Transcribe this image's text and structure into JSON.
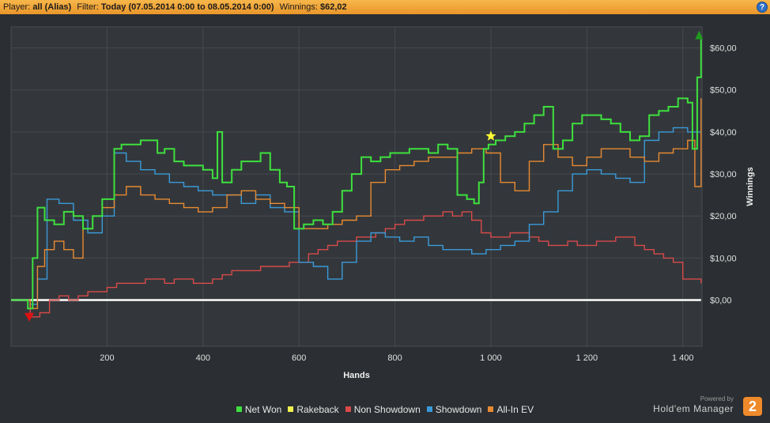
{
  "header": {
    "player_label": "Player:",
    "player_value": "all (Alias)",
    "filter_label": "Filter:",
    "filter_value": "Today (07.05.2014 0:00 to 08.05.2014 0:00)",
    "winnings_label": "Winnings:",
    "winnings_value": "$62,02",
    "help_glyph": "?"
  },
  "brand": {
    "powered": "Powered by",
    "name": "Hold'em Manager",
    "logo": "2"
  },
  "colors": {
    "net_won": "#3ee03e",
    "rakeback": "#f0f050",
    "non_showdown": "#d84a4a",
    "showdown": "#3a9ad9",
    "all_in_ev": "#e88a32"
  },
  "chart_data": {
    "type": "line",
    "title": "",
    "xlabel": "Hands",
    "ylabel": "Winnings",
    "xlim": [
      0,
      1440
    ],
    "ylim": [
      -11,
      65
    ],
    "x_ticks": [
      200,
      400,
      600,
      800,
      1000,
      1200,
      1400
    ],
    "x_tick_labels": [
      "200",
      "400",
      "600",
      "800",
      "1 000",
      "1 200",
      "1 400"
    ],
    "y_ticks": [
      0,
      10,
      20,
      30,
      40,
      50,
      60
    ],
    "y_tick_labels": [
      "$0,00",
      "$10,00",
      "$20,00",
      "$30,00",
      "$40,00",
      "$50,00",
      "$60,00"
    ],
    "grid": true,
    "legend_position": "bottom",
    "series": [
      {
        "name": "Net Won",
        "x": [
          0,
          25,
          35,
          45,
          55,
          70,
          90,
          110,
          130,
          150,
          170,
          190,
          215,
          230,
          250,
          270,
          290,
          305,
          320,
          340,
          360,
          380,
          400,
          420,
          430,
          440,
          460,
          480,
          500,
          520,
          540,
          560,
          575,
          590,
          610,
          630,
          650,
          670,
          690,
          710,
          730,
          750,
          770,
          790,
          810,
          830,
          850,
          870,
          890,
          910,
          930,
          950,
          965,
          975,
          985,
          995,
          1010,
          1030,
          1050,
          1070,
          1090,
          1110,
          1130,
          1150,
          1170,
          1190,
          1210,
          1230,
          1250,
          1270,
          1290,
          1310,
          1330,
          1350,
          1370,
          1390,
          1410,
          1420,
          1430,
          1438
        ],
        "values": [
          0,
          0,
          -2,
          10,
          22,
          19,
          18,
          21,
          20,
          17,
          20,
          24,
          36,
          37,
          37,
          38,
          38,
          35,
          36,
          33,
          32,
          32,
          31,
          29,
          40,
          28,
          31,
          33,
          33,
          35,
          31,
          28,
          27,
          17,
          18,
          19,
          18,
          21,
          26,
          30,
          34,
          33,
          34,
          35,
          35,
          36,
          36,
          35,
          37,
          36,
          25,
          24,
          23,
          28,
          36,
          37,
          38,
          39,
          40,
          42,
          44,
          46,
          36,
          38,
          42,
          44,
          44,
          43,
          42,
          40,
          38,
          39,
          44,
          45,
          46,
          48,
          47,
          36,
          53,
          62
        ]
      },
      {
        "name": "Non Showdown",
        "x": [
          0,
          25,
          40,
          60,
          80,
          100,
          120,
          140,
          160,
          180,
          200,
          220,
          240,
          260,
          280,
          300,
          320,
          340,
          360,
          380,
          400,
          420,
          440,
          460,
          480,
          500,
          520,
          540,
          560,
          580,
          600,
          620,
          640,
          660,
          680,
          700,
          720,
          740,
          760,
          780,
          800,
          820,
          840,
          860,
          880,
          900,
          920,
          940,
          960,
          980,
          1000,
          1020,
          1040,
          1060,
          1080,
          1100,
          1120,
          1140,
          1160,
          1180,
          1200,
          1220,
          1240,
          1260,
          1280,
          1300,
          1320,
          1340,
          1360,
          1380,
          1400,
          1420,
          1438
        ],
        "values": [
          0,
          0,
          -4,
          -3,
          0,
          1,
          0,
          1,
          2,
          2,
          3,
          4,
          4,
          4,
          5,
          5,
          4,
          5,
          5,
          4,
          4,
          5,
          6,
          7,
          7,
          7,
          8,
          8,
          8,
          9,
          9,
          11,
          12,
          13,
          14,
          14,
          15,
          15,
          16,
          17,
          18,
          19,
          19,
          20,
          20,
          21,
          20,
          21,
          19,
          16,
          15,
          15,
          16,
          16,
          15,
          14,
          13,
          13,
          14,
          13,
          13,
          14,
          14,
          15,
          15,
          13,
          12,
          11,
          10,
          9,
          5,
          5,
          4
        ]
      },
      {
        "name": "Showdown",
        "x": [
          0,
          25,
          40,
          55,
          75,
          100,
          130,
          160,
          190,
          215,
          240,
          270,
          300,
          330,
          360,
          390,
          420,
          450,
          480,
          510,
          540,
          570,
          600,
          630,
          660,
          690,
          720,
          750,
          780,
          810,
          840,
          870,
          900,
          930,
          960,
          990,
          1020,
          1050,
          1080,
          1110,
          1140,
          1170,
          1200,
          1230,
          1260,
          1290,
          1320,
          1350,
          1380,
          1410,
          1438
        ],
        "values": [
          0,
          0,
          -1,
          5,
          24,
          23,
          19,
          16,
          20,
          35,
          33,
          31,
          30,
          28,
          27,
          26,
          25,
          25,
          23,
          25,
          22,
          21,
          9,
          8,
          5,
          9,
          14,
          16,
          15,
          14,
          15,
          13,
          12,
          12,
          11,
          12,
          13,
          14,
          18,
          21,
          26,
          30,
          31,
          30,
          29,
          28,
          38,
          40,
          41,
          40,
          42
        ]
      },
      {
        "name": "All-In EV",
        "x": [
          0,
          25,
          40,
          55,
          70,
          90,
          110,
          130,
          150,
          170,
          190,
          215,
          240,
          270,
          300,
          330,
          360,
          390,
          420,
          450,
          480,
          510,
          540,
          570,
          600,
          630,
          660,
          690,
          720,
          750,
          780,
          810,
          840,
          870,
          900,
          930,
          960,
          990,
          1020,
          1050,
          1080,
          1110,
          1140,
          1170,
          1200,
          1230,
          1260,
          1290,
          1320,
          1350,
          1380,
          1410,
          1425,
          1438
        ],
        "values": [
          0,
          0,
          -2,
          8,
          12,
          14,
          12,
          10,
          17,
          20,
          22,
          25,
          27,
          25,
          24,
          23,
          22,
          21,
          22,
          25,
          26,
          24,
          23,
          22,
          17,
          17,
          18,
          19,
          20,
          28,
          31,
          32,
          33,
          34,
          34,
          35,
          36,
          35,
          28,
          26,
          33,
          37,
          34,
          32,
          34,
          36,
          36,
          34,
          33,
          35,
          36,
          38,
          27,
          48
        ]
      },
      {
        "name": "Rakeback",
        "x": [
          0,
          1438
        ],
        "values": [
          0,
          0
        ]
      }
    ],
    "markers": [
      {
        "type": "triangle-down",
        "x": 38,
        "y": -4,
        "color": "#dd1111"
      },
      {
        "type": "star",
        "x": 1000,
        "y": 39,
        "color": "#ffff33"
      },
      {
        "type": "triangle-up",
        "x": 1434,
        "y": 63,
        "color": "#1f9a1f"
      }
    ]
  },
  "legend": [
    {
      "label": "Net Won",
      "color": "#3ee03e"
    },
    {
      "label": "Rakeback",
      "color": "#f0f050"
    },
    {
      "label": "Non Showdown",
      "color": "#d84a4a"
    },
    {
      "label": "Showdown",
      "color": "#3a9ad9"
    },
    {
      "label": "All-In EV",
      "color": "#e88a32"
    }
  ]
}
